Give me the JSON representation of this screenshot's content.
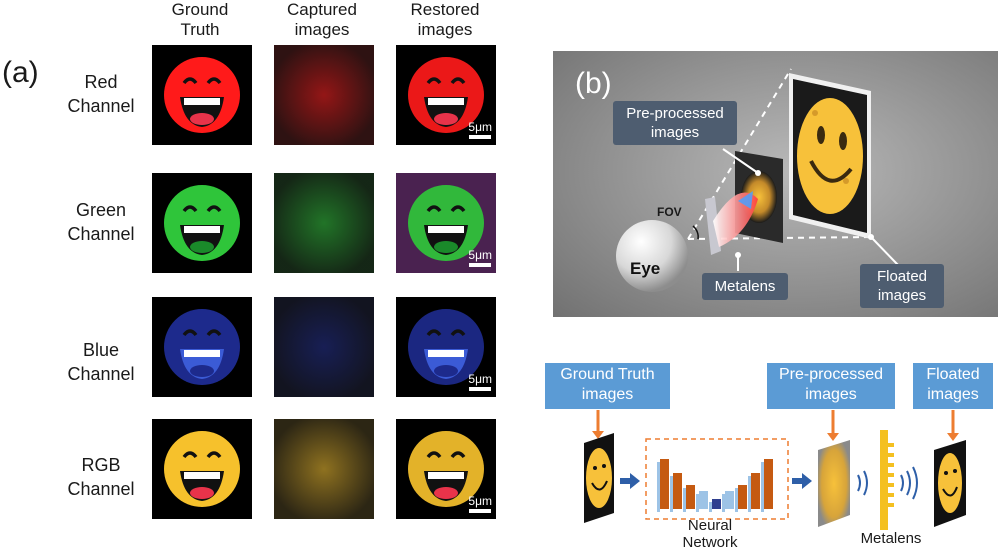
{
  "panel_a": {
    "tag": "(a)",
    "columns": [
      "Ground\nTruth",
      "Captured\nimages",
      "Restored\nimages"
    ],
    "rows": [
      {
        "label": "Red\nChannel",
        "color": "#ff1a1a"
      },
      {
        "label": "Green\nChannel",
        "color": "#2fc53a"
      },
      {
        "label": "Blue\nChannel",
        "color": "#1d2a8c"
      },
      {
        "label": "RGB\nChannel",
        "color": "#f6c12c"
      }
    ],
    "scale_label": "5μm"
  },
  "panel_b": {
    "tag": "(b)",
    "callouts": {
      "preprocessed": "Pre-processed\nimages",
      "fov": "FOV",
      "eye": "Eye",
      "metalens": "Metalens",
      "floated": "Floated\nimages"
    }
  },
  "pipeline": {
    "ground_truth": "Ground Truth\nimages",
    "preprocessed": "Pre-processed\nimages",
    "floated": "Floated\nimages",
    "neural_network": "Neural\nNetwork",
    "metalens": "Metalens",
    "colors": {
      "box": "#5b9bd5",
      "arrow": "#ed7d31",
      "bar_orange": "#c55a11",
      "bar_blue": "#9dc3e6",
      "bar_navy": "#2f3f8f",
      "metalens": "#f4c020"
    }
  }
}
